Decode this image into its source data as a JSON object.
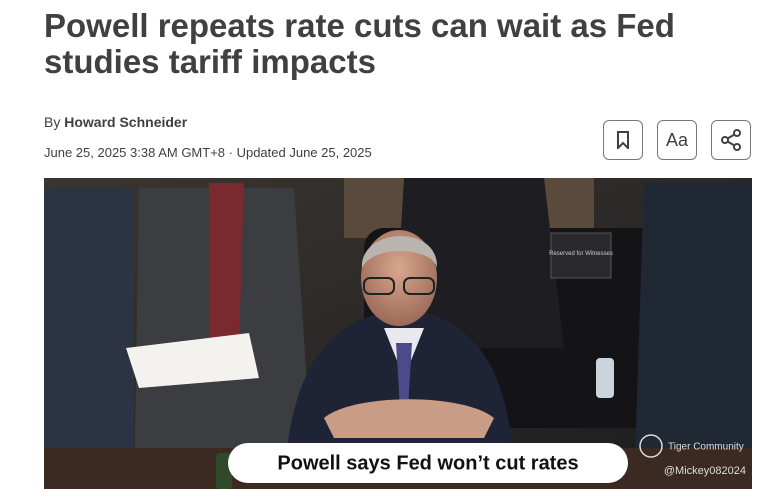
{
  "header": {
    "title": "Powell repeats rate cuts can wait as Fed studies tariff impacts"
  },
  "byline": {
    "prefix": "By",
    "author": "Howard Schneider",
    "dateline": "June 25, 2025 3:38 AM GMT+8 · Updated June 25, 2025"
  },
  "toolbar": {
    "text_size_label": "Aa"
  },
  "image": {
    "caption": "Powell says Fed won’t cut rates",
    "sign": "Reserved for Witnesses",
    "watermark": "Tiger Community",
    "handle": "@Mickey082024"
  }
}
